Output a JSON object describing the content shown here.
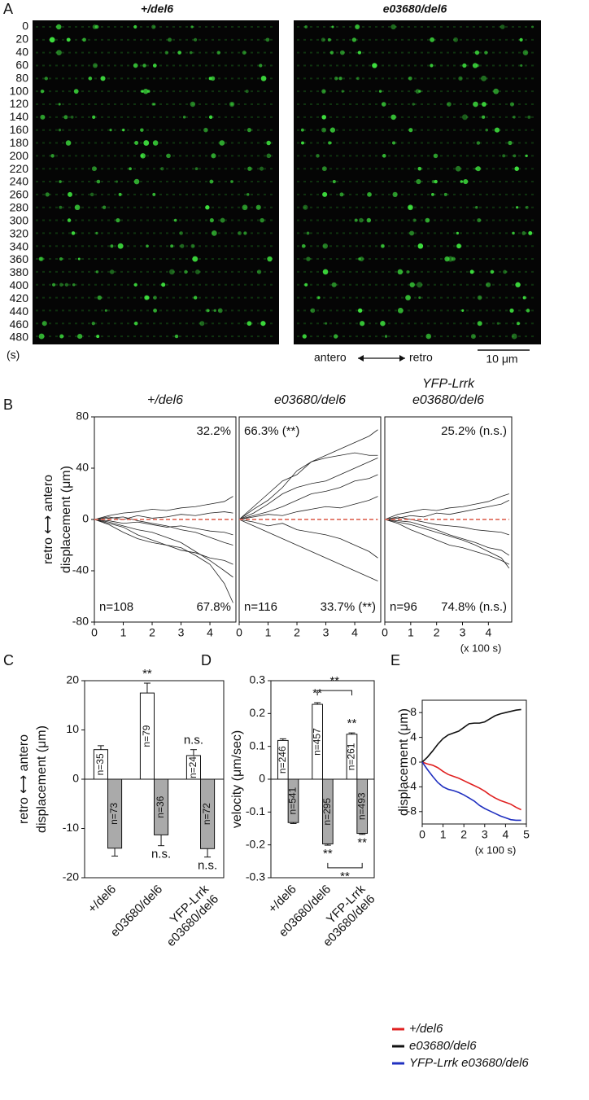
{
  "panel_labels": [
    "A",
    "B",
    "C",
    "D",
    "E"
  ],
  "kymograph": {
    "titles": [
      "+/del6",
      "e03680/del6"
    ],
    "ylim": [
      -10,
      490
    ],
    "time_ticks": [
      0,
      20,
      40,
      60,
      80,
      100,
      120,
      140,
      160,
      180,
      200,
      220,
      240,
      260,
      280,
      300,
      320,
      340,
      360,
      380,
      400,
      420,
      440,
      460,
      480
    ],
    "time_unit": "(s)",
    "direction": [
      "antero",
      "retro"
    ],
    "scale_bar": "10 μm"
  },
  "chart_data": [
    {
      "type": "line",
      "title": [
        "+/del6"
      ],
      "ylabel": [
        "retro ⟷ antero",
        "displacement (μm)"
      ],
      "x": [
        0,
        0.5,
        1,
        1.5,
        2,
        2.5,
        3,
        3.5,
        4,
        4.5,
        4.8
      ],
      "xlim": [
        0,
        4.9
      ],
      "ylim": [
        -80,
        80
      ],
      "xticks": [
        0,
        1,
        2,
        3,
        4
      ],
      "yticks": [
        -80,
        -40,
        0,
        40,
        80
      ],
      "annotations": {
        "top_right": "32.2%",
        "bottom_left": "n=108",
        "bottom_right": "67.8%"
      },
      "series": [
        {
          "color": "#222222",
          "values": [
            0,
            -2,
            -5,
            -8,
            -10,
            -14,
            -18,
            -25,
            -32,
            -40,
            -45
          ]
        },
        {
          "color": "#222222",
          "values": [
            0,
            1,
            2,
            -1,
            -3,
            -5,
            -8,
            -10,
            -14,
            -18,
            -20
          ]
        },
        {
          "color": "#222222",
          "values": [
            0,
            3,
            5,
            6,
            8,
            7,
            9,
            10,
            12,
            14,
            18
          ]
        },
        {
          "color": "#222222",
          "values": [
            0,
            -4,
            -10,
            -15,
            -18,
            -20,
            -22,
            -28,
            -35,
            -50,
            -65
          ]
        },
        {
          "color": "#222222",
          "values": [
            0,
            -1,
            -3,
            -2,
            -4,
            -6,
            -5,
            -7,
            -9,
            -10,
            -12
          ]
        },
        {
          "color": "#222222",
          "values": [
            0,
            2,
            0,
            3,
            1,
            2,
            4,
            3,
            5,
            6,
            5
          ]
        },
        {
          "color": "#222222",
          "values": [
            0,
            -3,
            -6,
            -12,
            -16,
            -20,
            -24,
            -26,
            -30,
            -32,
            -35
          ]
        },
        {
          "color": "#e07060",
          "dash": true,
          "values": [
            0,
            0,
            0,
            0,
            0,
            0,
            0,
            0,
            0,
            0,
            0
          ]
        }
      ]
    },
    {
      "type": "line",
      "title": [
        "e03680/del6"
      ],
      "x": [
        0,
        0.5,
        1,
        1.5,
        2,
        2.5,
        3,
        3.5,
        4,
        4.5,
        4.8
      ],
      "xlim": [
        0,
        4.9
      ],
      "ylim": [
        -80,
        80
      ],
      "xticks": [
        0,
        1,
        2,
        3,
        4
      ],
      "annotations": {
        "top_left": "66.3% (**)",
        "bottom_left": "n=116",
        "bottom_right": "33.7% (**)"
      },
      "series": [
        {
          "color": "#222222",
          "values": [
            0,
            10,
            20,
            30,
            35,
            45,
            50,
            55,
            60,
            65,
            70
          ]
        },
        {
          "color": "#222222",
          "values": [
            0,
            5,
            12,
            20,
            25,
            28,
            30,
            35,
            40,
            45,
            48
          ]
        },
        {
          "color": "#222222",
          "values": [
            0,
            -5,
            -10,
            -15,
            -20,
            -25,
            -30,
            -35,
            -40,
            -45,
            -48
          ]
        },
        {
          "color": "#222222",
          "values": [
            0,
            3,
            6,
            10,
            15,
            20,
            22,
            25,
            30,
            32,
            35
          ]
        },
        {
          "color": "#222222",
          "values": [
            0,
            -2,
            -5,
            -3,
            -8,
            -10,
            -12,
            -15,
            -20,
            -25,
            -30
          ]
        },
        {
          "color": "#222222",
          "values": [
            0,
            8,
            15,
            25,
            38,
            45,
            48,
            50,
            52,
            50,
            50
          ]
        },
        {
          "color": "#222222",
          "values": [
            0,
            2,
            4,
            3,
            6,
            8,
            10,
            9,
            12,
            15,
            18
          ]
        },
        {
          "color": "#e07060",
          "dash": true,
          "values": [
            0,
            0,
            0,
            0,
            0,
            0,
            0,
            0,
            0,
            0,
            0
          ]
        }
      ]
    },
    {
      "type": "line",
      "title": [
        "YFP-Lrrk",
        "e03680/del6"
      ],
      "xlabel": "(x 100 s)",
      "x": [
        0,
        0.5,
        1,
        1.5,
        2,
        2.5,
        3,
        3.5,
        4,
        4.5,
        4.8
      ],
      "xlim": [
        0,
        4.9
      ],
      "ylim": [
        -80,
        80
      ],
      "xticks": [
        0,
        1,
        2,
        3,
        4
      ],
      "annotations": {
        "top_right": "25.2% (n.s.)",
        "bottom_left": "n=96",
        "bottom_right": "74.8% (n.s.)"
      },
      "series": [
        {
          "color": "#222222",
          "values": [
            0,
            -2,
            -4,
            -7,
            -10,
            -13,
            -16,
            -20,
            -25,
            -30,
            -38
          ]
        },
        {
          "color": "#222222",
          "values": [
            0,
            1,
            3,
            2,
            5,
            4,
            6,
            8,
            10,
            12,
            15
          ]
        },
        {
          "color": "#222222",
          "values": [
            0,
            -3,
            -8,
            -12,
            -16,
            -20,
            -22,
            -25,
            -28,
            -32,
            -35
          ]
        },
        {
          "color": "#222222",
          "values": [
            0,
            2,
            0,
            -2,
            -4,
            -5,
            -6,
            -8,
            -9,
            -10,
            -12
          ]
        },
        {
          "color": "#222222",
          "values": [
            0,
            4,
            6,
            8,
            7,
            9,
            10,
            12,
            14,
            18,
            20
          ]
        },
        {
          "color": "#222222",
          "values": [
            0,
            -1,
            -2,
            -5,
            -8,
            -12,
            -15,
            -18,
            -22,
            -24,
            -28
          ]
        },
        {
          "color": "#e07060",
          "dash": true,
          "values": [
            0,
            0,
            0,
            0,
            0,
            0,
            0,
            0,
            0,
            0,
            0
          ]
        }
      ]
    },
    {
      "type": "bar",
      "ylabel": [
        "retro ⟷ antero",
        "displacement (μm)"
      ],
      "categories": [
        "+/del6",
        "e03680/del6",
        [
          "YFP-Lrrk",
          "e03680/del6"
        ]
      ],
      "ylim": [
        -20,
        20
      ],
      "yticks": [
        -20,
        -10,
        0,
        10,
        20
      ],
      "series": [
        {
          "color": "#ffffff",
          "values": [
            6,
            17.5,
            4.8
          ],
          "errors": [
            0.8,
            2,
            1.2
          ],
          "n_labels": [
            "n=35",
            "n=79",
            "n=24"
          ],
          "significance": [
            null,
            "**",
            "n.s."
          ]
        },
        {
          "color": "#aaaaaa",
          "values": [
            -14,
            -11.3,
            -14.1
          ],
          "errors": [
            1.6,
            2.2,
            1.7
          ],
          "n_labels": [
            "n=73",
            "n=36",
            "n=72"
          ],
          "significance": [
            null,
            "n.s.",
            "n.s."
          ]
        }
      ]
    },
    {
      "type": "bar",
      "ylabel": "velocity (μm/sec)",
      "categories": [
        "+/del6",
        "e03680/del6",
        [
          "YFP-Lrrk",
          "e03680/del6"
        ]
      ],
      "ylim": [
        -0.3,
        0.3
      ],
      "yticks": [
        -0.3,
        -0.2,
        -0.1,
        0,
        0.1,
        0.2,
        0.3
      ],
      "series": [
        {
          "color": "#ffffff",
          "values": [
            0.118,
            0.228,
            0.137
          ],
          "errors": [
            0.005,
            0.005,
            0.004
          ],
          "n_labels": [
            "n=246",
            "n=457",
            "n=261"
          ],
          "significance": [
            null,
            "**",
            "**"
          ],
          "bracket": "**"
        },
        {
          "color": "#aaaaaa",
          "values": [
            -0.132,
            -0.197,
            -0.165
          ],
          "errors": [
            0.003,
            0.004,
            0.003
          ],
          "n_labels": [
            "n=541",
            "n=295",
            "n=493"
          ],
          "significance": [
            null,
            "**",
            "**"
          ],
          "bracket": "**"
        }
      ]
    },
    {
      "type": "line",
      "ylabel": "displacement (μm)",
      "xlabel": "(x 100 s)",
      "legend": "below",
      "x": [
        0,
        0.25,
        0.5,
        0.75,
        1,
        1.25,
        1.5,
        1.75,
        2,
        2.25,
        2.5,
        2.75,
        3,
        3.25,
        3.5,
        3.75,
        4,
        4.25,
        4.5,
        4.75
      ],
      "xlim": [
        0,
        5
      ],
      "ylim": [
        -10,
        10
      ],
      "xticks": [
        0,
        1,
        2,
        3,
        4,
        5
      ],
      "yticks": [
        -8,
        -4,
        0,
        4,
        8
      ],
      "series": [
        {
          "name": "+/del6",
          "color": "#e02020",
          "values": [
            0,
            -0.3,
            -0.5,
            -0.9,
            -1.5,
            -2.0,
            -2.3,
            -2.6,
            -3.0,
            -3.4,
            -3.8,
            -4.2,
            -4.7,
            -5.3,
            -5.8,
            -6.2,
            -6.5,
            -6.8,
            -7.3,
            -7.7
          ]
        },
        {
          "name": "e03680/del6",
          "color": "#111111",
          "values": [
            0,
            0.8,
            1.8,
            2.9,
            3.8,
            4.4,
            4.7,
            5.0,
            5.6,
            6.2,
            6.3,
            6.3,
            6.5,
            7.0,
            7.5,
            7.8,
            8.0,
            8.2,
            8.4,
            8.5
          ]
        },
        {
          "name": "YFP-Lrrk e03680/del6",
          "color": "#2030c0",
          "values": [
            0,
            -1.2,
            -2.3,
            -3.3,
            -4.0,
            -4.4,
            -4.6,
            -4.9,
            -5.3,
            -5.8,
            -6.3,
            -7.0,
            -7.5,
            -7.9,
            -8.3,
            -8.7,
            -9.0,
            -9.3,
            -9.4,
            -9.4
          ]
        }
      ]
    }
  ]
}
